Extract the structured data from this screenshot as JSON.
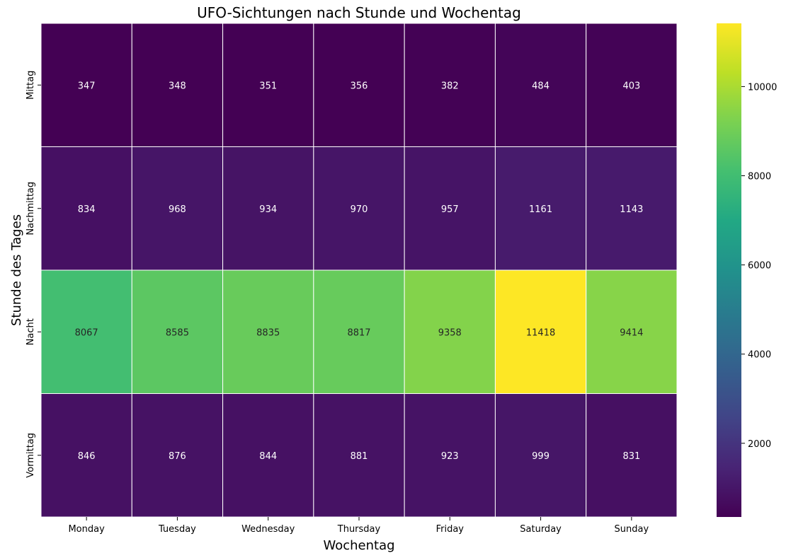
{
  "chart_data": {
    "type": "heatmap",
    "title": "UFO-Sichtungen nach Stunde und Wochentag",
    "xlabel": "Wochentag",
    "ylabel": "Stunde des Tages",
    "x_categories": [
      "Monday",
      "Tuesday",
      "Wednesday",
      "Thursday",
      "Friday",
      "Saturday",
      "Sunday"
    ],
    "y_categories": [
      "Mittag",
      "Nachmittag",
      "Nacht",
      "Vormittag"
    ],
    "values": [
      [
        347,
        348,
        351,
        356,
        382,
        484,
        403
      ],
      [
        834,
        968,
        934,
        970,
        957,
        1161,
        1143
      ],
      [
        8067,
        8585,
        8835,
        8817,
        9358,
        11418,
        9414
      ],
      [
        846,
        876,
        844,
        881,
        923,
        999,
        831
      ]
    ],
    "colormap": "viridis",
    "annotated": true,
    "colorbar": {
      "vmin": 347,
      "vmax": 11418,
      "ticks": [
        2000,
        4000,
        6000,
        8000,
        10000
      ]
    }
  }
}
